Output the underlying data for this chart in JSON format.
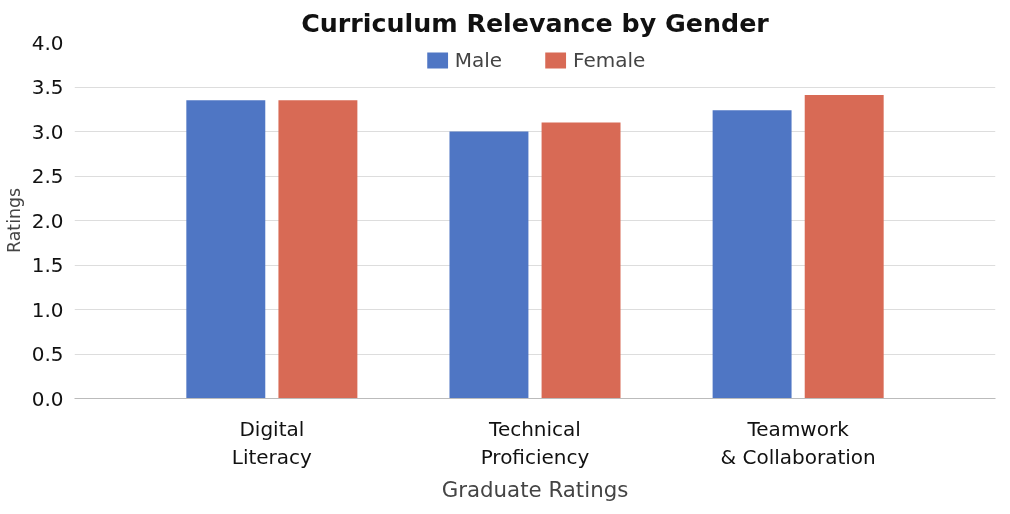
{
  "chart_data": {
    "type": "bar",
    "title": "Curriculum Relevance by Gender",
    "xlabel": "Graduate Ratings",
    "ylabel": "Ratings",
    "categories": [
      "Digital Literacy",
      "Technical Proficiency",
      "Teamwork & Collaboration"
    ],
    "series": [
      {
        "name": "Male",
        "color": "#4f76c4",
        "values": [
          3.35,
          3.0,
          3.24
        ]
      },
      {
        "name": "Female",
        "color": "#d86a55",
        "values": [
          3.35,
          3.1,
          3.41
        ]
      }
    ],
    "ylim": [
      0,
      4
    ],
    "yticks": [
      {
        "value": 0,
        "label": "0.0"
      },
      {
        "value": 0.5,
        "label": "0.5"
      },
      {
        "value": 1,
        "label": "1.0"
      },
      {
        "value": 1.5,
        "label": "1.5"
      },
      {
        "value": 2,
        "label": "2.0"
      },
      {
        "value": 2.5,
        "label": "2.5"
      },
      {
        "value": 3,
        "label": "3.0"
      },
      {
        "value": 3.5,
        "label": "3.5"
      },
      {
        "value": 4,
        "label": "4.0"
      }
    ],
    "grid": "y",
    "legend": "top"
  }
}
